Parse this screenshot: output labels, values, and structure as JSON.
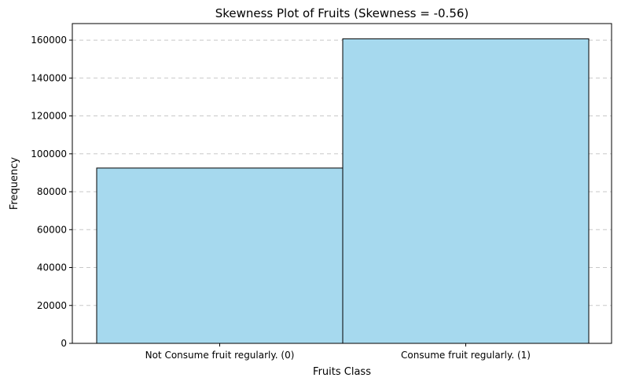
{
  "chart_data": {
    "type": "bar",
    "title": "Skewness Plot of Fruits (Skewness = -0.56)",
    "xlabel": "Fruits Class",
    "ylabel": "Frequency",
    "categories": [
      "Not Consume fruit regularly. (0)",
      "Consume fruit regularly. (1)"
    ],
    "values": [
      92500,
      160700
    ],
    "ylim": [
      0,
      168735
    ],
    "yticks": [
      0,
      20000,
      40000,
      60000,
      80000,
      100000,
      120000,
      140000,
      160000
    ],
    "grid": "y-dashed",
    "bar_color": "#a6d9ee",
    "edge_color": "#000000",
    "grid_color": "#c8c8c8"
  }
}
